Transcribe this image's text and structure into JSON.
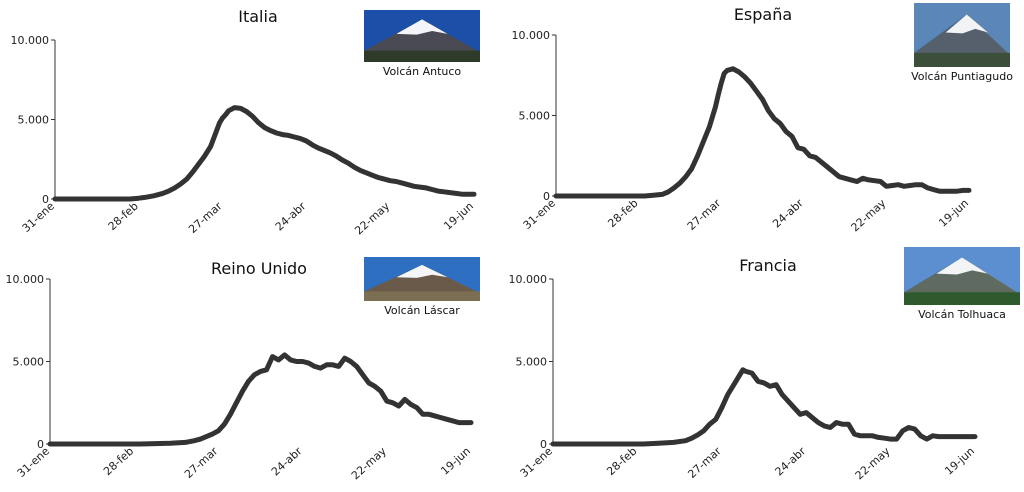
{
  "chart_data": [
    {
      "type": "line",
      "title": "Italia",
      "photo_caption": "Volcán Antuco",
      "photo_palette": {
        "sky": "#1b4fa8",
        "snow": "#f3f5f8",
        "rock": "#4a4a55",
        "ground": "#2f3b2a"
      },
      "ylim": [
        0,
        10000
      ],
      "yticks": [
        "0",
        "5.000",
        "10.000"
      ],
      "ytick_values": [
        0,
        5000,
        10000
      ],
      "xlim": [
        0,
        140
      ],
      "xticks": [
        "31-ene",
        "28-feb",
        "27-mar",
        "24-abr",
        "22-may",
        "19-jun"
      ],
      "xtick_values": [
        0,
        28,
        56,
        84,
        112,
        140
      ],
      "x": [
        0,
        10,
        20,
        25,
        28,
        30,
        33,
        36,
        38,
        40,
        42,
        44,
        46,
        48,
        50,
        52,
        53,
        54,
        55,
        56,
        57,
        58,
        60,
        62,
        64,
        66,
        68,
        70,
        72,
        74,
        76,
        78,
        80,
        82,
        84,
        86,
        88,
        90,
        92,
        94,
        96,
        98,
        100,
        102,
        104,
        106,
        108,
        110,
        112,
        114,
        116,
        118,
        120,
        122,
        124,
        126,
        128,
        130,
        132,
        134,
        136,
        138,
        140
      ],
      "y": [
        0,
        0,
        0,
        0,
        50,
        100,
        200,
        350,
        500,
        700,
        950,
        1250,
        1700,
        2200,
        2700,
        3300,
        3800,
        4300,
        4800,
        5100,
        5300,
        5550,
        5750,
        5700,
        5500,
        5200,
        4800,
        4500,
        4300,
        4150,
        4050,
        4000,
        3900,
        3800,
        3650,
        3400,
        3200,
        3050,
        2900,
        2700,
        2450,
        2250,
        2000,
        1800,
        1650,
        1500,
        1350,
        1250,
        1150,
        1100,
        1000,
        900,
        800,
        750,
        700,
        600,
        500,
        450,
        400,
        350,
        300,
        300,
        300
      ],
      "color": "#333333"
    },
    {
      "type": "line",
      "title": "España",
      "photo_caption": "Volcán Puntiagudo",
      "photo_palette": {
        "sky": "#5a86b8",
        "snow": "#f1f3f6",
        "rock": "#55606c",
        "ground": "#3b4f3a"
      },
      "ylim": [
        0,
        10000
      ],
      "yticks": [
        "0",
        "5.000",
        "10.000"
      ],
      "ytick_values": [
        0,
        5000,
        10000
      ],
      "xlim": [
        0,
        140
      ],
      "xticks": [
        "31-ene",
        "28-feb",
        "27-mar",
        "24-abr",
        "22-may",
        "19-jun"
      ],
      "xtick_values": [
        0,
        28,
        56,
        84,
        112,
        140
      ],
      "x": [
        0,
        10,
        20,
        25,
        30,
        33,
        36,
        38,
        40,
        42,
        44,
        46,
        48,
        50,
        52,
        54,
        55,
        56,
        57,
        58,
        60,
        62,
        64,
        66,
        68,
        70,
        72,
        74,
        76,
        78,
        80,
        82,
        84,
        86,
        88,
        90,
        92,
        94,
        96,
        98,
        100,
        102,
        104,
        106,
        108,
        110,
        112,
        114,
        116,
        118,
        120,
        122,
        124,
        126,
        128,
        130,
        132,
        134,
        136,
        138,
        140
      ],
      "y": [
        0,
        0,
        0,
        0,
        0,
        50,
        100,
        250,
        500,
        800,
        1200,
        1700,
        2500,
        3400,
        4300,
        5500,
        6300,
        7000,
        7600,
        7800,
        7900,
        7700,
        7400,
        7000,
        6500,
        6000,
        5300,
        4800,
        4500,
        4000,
        3700,
        3000,
        2900,
        2500,
        2400,
        2100,
        1800,
        1500,
        1200,
        1100,
        1000,
        900,
        1100,
        1000,
        950,
        900,
        600,
        650,
        700,
        600,
        650,
        700,
        700,
        500,
        400,
        300,
        300,
        300,
        300,
        350,
        350
      ],
      "color": "#333333"
    },
    {
      "type": "line",
      "title": "Reino Unido",
      "photo_caption": "Volcán Láscar",
      "photo_palette": {
        "sky": "#2f6fc2",
        "snow": "#f4f6f8",
        "rock": "#6a5a4a",
        "ground": "#7a6f52"
      },
      "ylim": [
        0,
        10000
      ],
      "yticks": [
        "0",
        "5.000",
        "10.000"
      ],
      "ytick_values": [
        0,
        5000,
        10000
      ],
      "xlim": [
        0,
        140
      ],
      "xticks": [
        "31-ene",
        "28-feb",
        "27-mar",
        "24-abr",
        "22-may",
        "19-jun"
      ],
      "xtick_values": [
        0,
        28,
        56,
        84,
        112,
        140
      ],
      "x": [
        0,
        10,
        20,
        30,
        40,
        45,
        48,
        50,
        52,
        54,
        56,
        58,
        60,
        62,
        64,
        66,
        68,
        70,
        72,
        74,
        76,
        78,
        80,
        82,
        84,
        86,
        88,
        90,
        92,
        94,
        96,
        98,
        100,
        102,
        104,
        106,
        108,
        110,
        112,
        114,
        116,
        118,
        120,
        122,
        124,
        126,
        128,
        130,
        132,
        134,
        136,
        138,
        140
      ],
      "y": [
        0,
        0,
        0,
        0,
        50,
        100,
        200,
        300,
        450,
        600,
        800,
        1200,
        1800,
        2500,
        3200,
        3800,
        4200,
        4400,
        4500,
        5300,
        5100,
        5400,
        5100,
        5000,
        5000,
        4900,
        4700,
        4600,
        4800,
        4800,
        4700,
        5200,
        5000,
        4700,
        4200,
        3700,
        3500,
        3200,
        2600,
        2500,
        2300,
        2700,
        2400,
        2200,
        1800,
        1800,
        1700,
        1600,
        1500,
        1400,
        1300,
        1300,
        1300
      ],
      "color": "#333333"
    },
    {
      "type": "line",
      "title": "Francia",
      "photo_caption": "Volcán Tolhuaca",
      "photo_palette": {
        "sky": "#5b8fcf",
        "snow": "#f2f4f6",
        "rock": "#5f6a60",
        "ground": "#2e5a2e"
      },
      "ylim": [
        0,
        10000
      ],
      "yticks": [
        "0",
        "5.000",
        "10.000"
      ],
      "ytick_values": [
        0,
        5000,
        10000
      ],
      "xlim": [
        0,
        140
      ],
      "xticks": [
        "31-ene",
        "28-feb",
        "27-mar",
        "24-abr",
        "22-may",
        "19-jun"
      ],
      "xtick_values": [
        0,
        28,
        56,
        84,
        112,
        140
      ],
      "x": [
        0,
        10,
        20,
        30,
        35,
        40,
        44,
        46,
        48,
        50,
        52,
        54,
        56,
        58,
        60,
        62,
        63,
        64,
        66,
        68,
        70,
        72,
        74,
        76,
        78,
        80,
        82,
        84,
        86,
        88,
        90,
        92,
        94,
        96,
        98,
        100,
        102,
        104,
        106,
        108,
        110,
        112,
        114,
        116,
        118,
        120,
        122,
        124,
        126,
        128,
        130,
        132,
        134,
        136,
        138,
        140
      ],
      "y": [
        0,
        0,
        0,
        0,
        50,
        100,
        200,
        350,
        550,
        800,
        1200,
        1500,
        2200,
        3000,
        3600,
        4200,
        4500,
        4400,
        4300,
        3800,
        3700,
        3500,
        3600,
        3000,
        2600,
        2200,
        1800,
        1900,
        1600,
        1300,
        1100,
        1000,
        1300,
        1200,
        1200,
        600,
        500,
        500,
        500,
        400,
        350,
        300,
        300,
        800,
        1000,
        900,
        500,
        300,
        500,
        450,
        450,
        450,
        450,
        450,
        450,
        450
      ],
      "color": "#333333"
    }
  ]
}
